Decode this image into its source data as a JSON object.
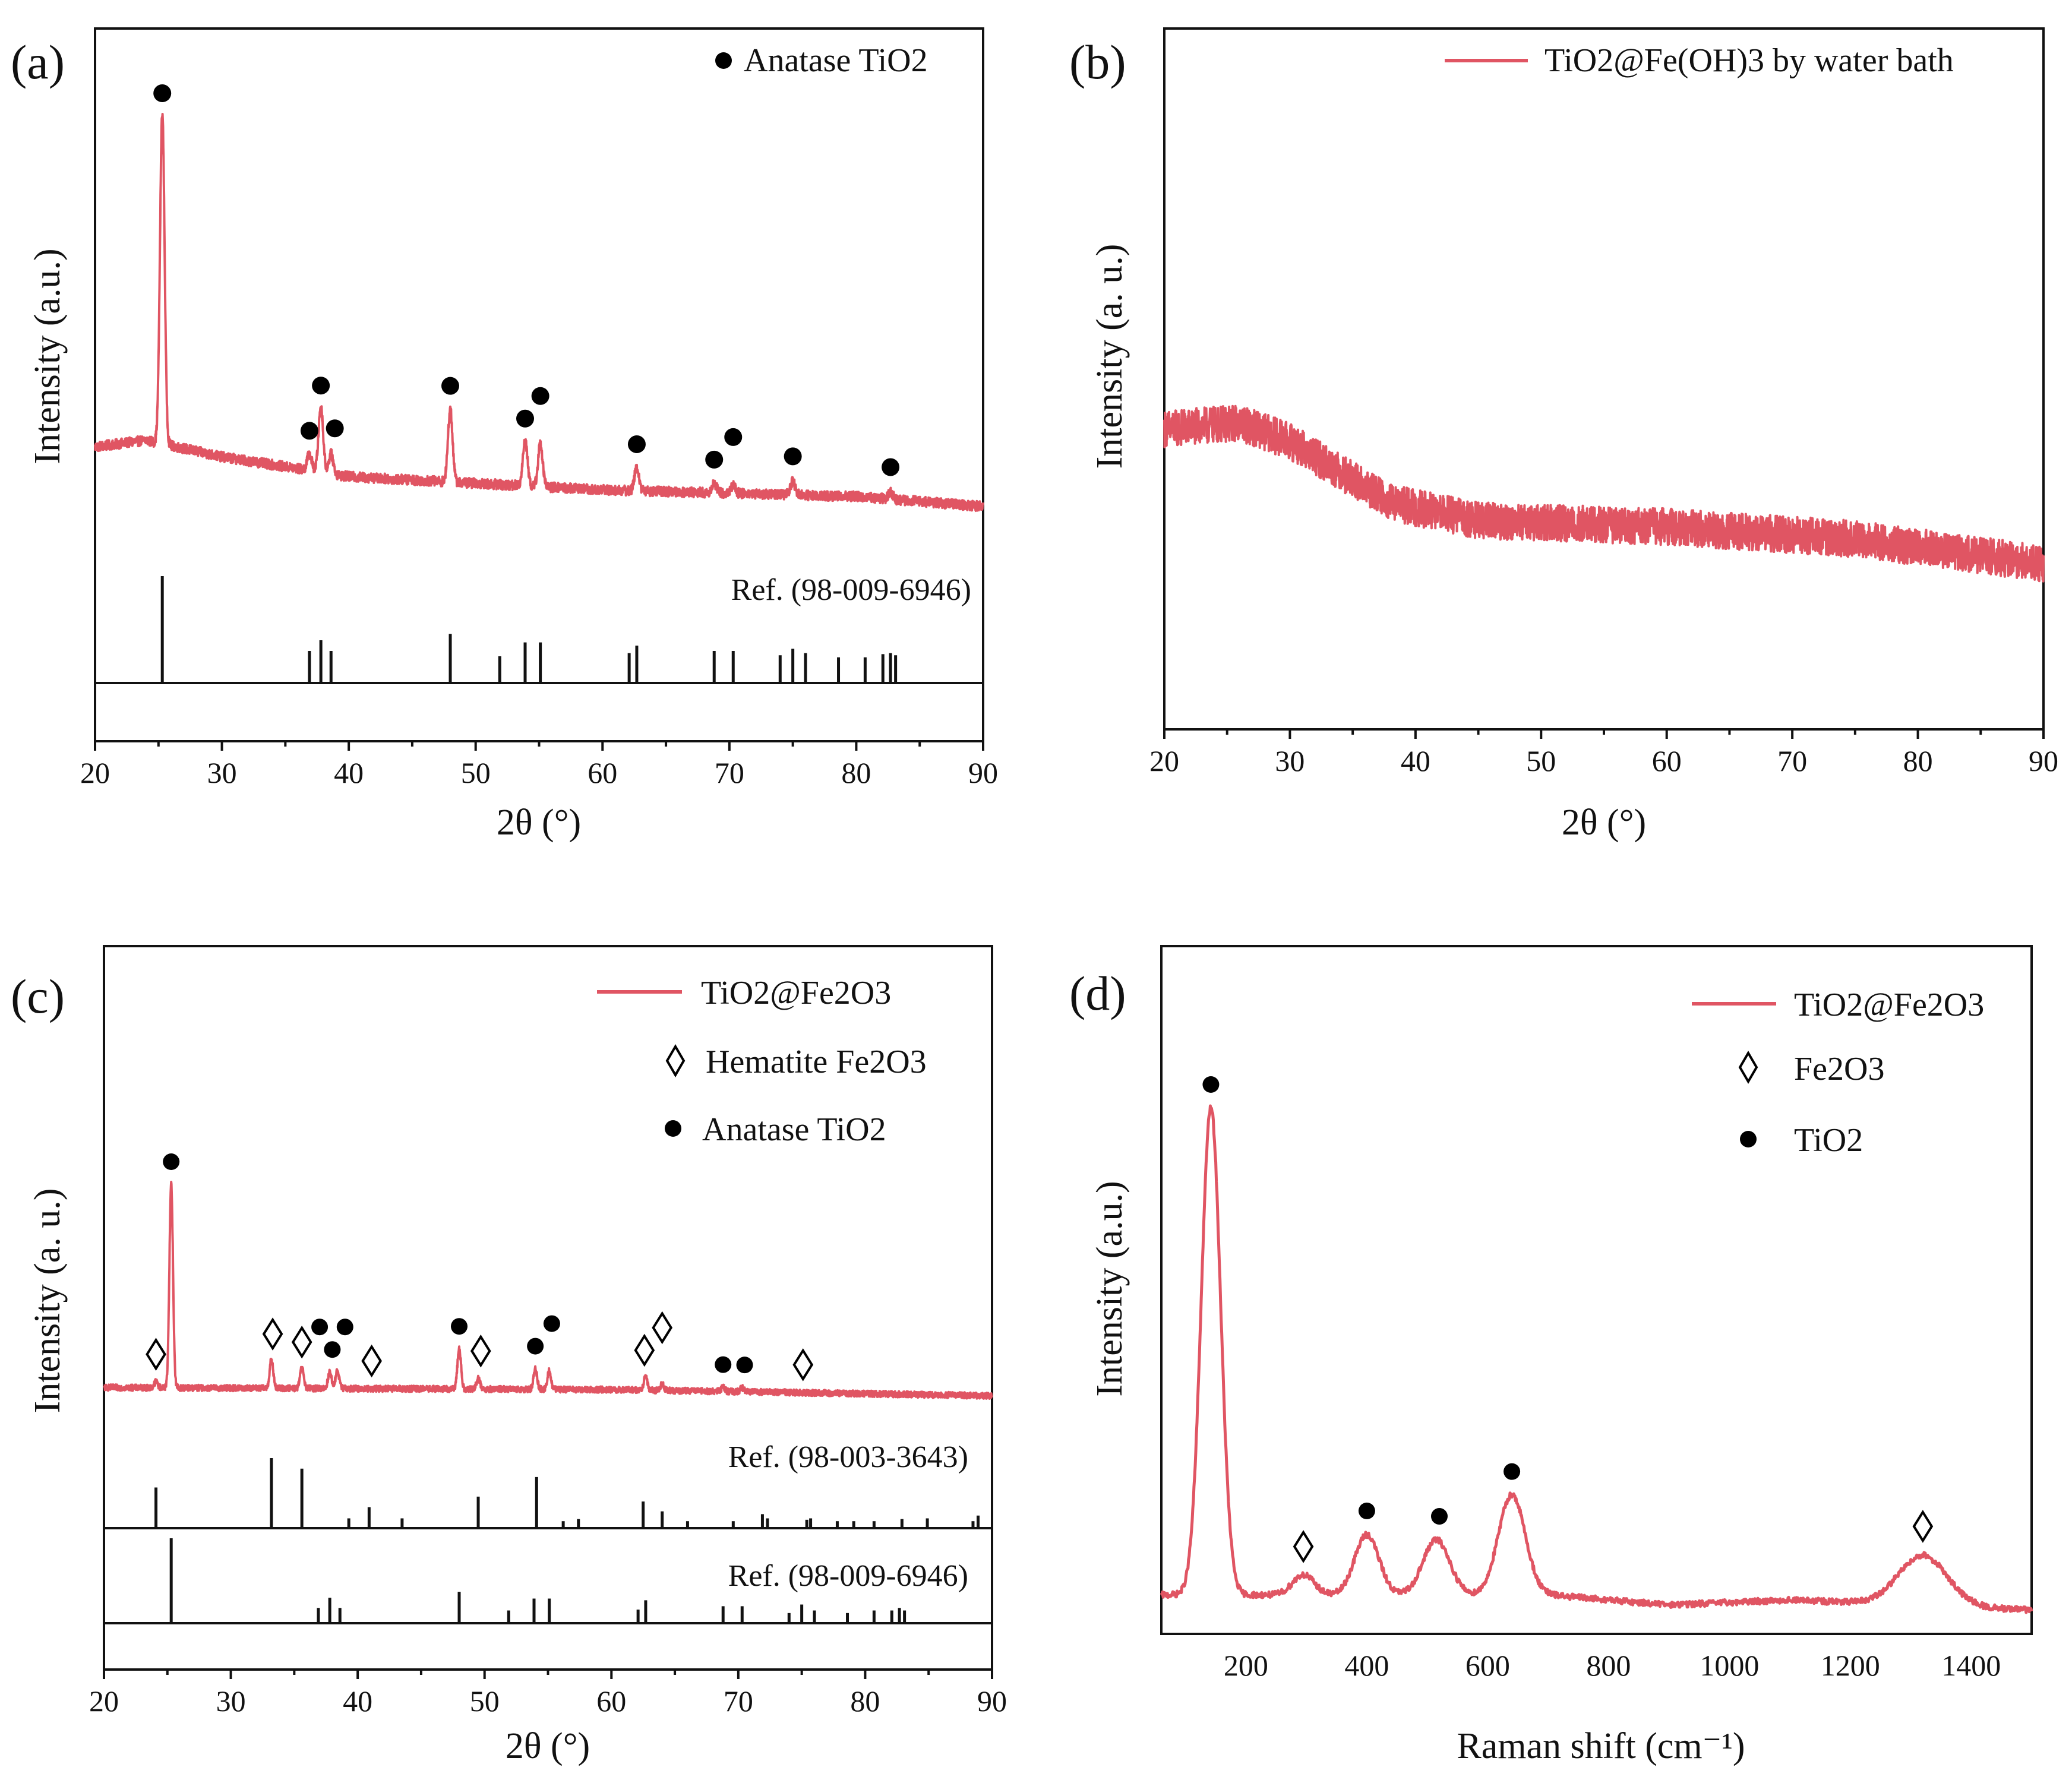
{
  "colors": {
    "trace": "#e05563",
    "axis": "#111111",
    "marker": "#000000",
    "background": "#ffffff"
  },
  "chart_data": [
    {
      "panel": "(a)",
      "type": "line",
      "xlabel": "2θ (°)",
      "ylabel": "Intensity (a.u.)",
      "xlim": [
        20,
        90
      ],
      "xticks": [
        20,
        30,
        40,
        50,
        60,
        70,
        80,
        90
      ],
      "grid": false,
      "legend_position": "top-right",
      "series": [
        {
          "name": "Anatase TiO2",
          "legend_symbol": "dot",
          "baseline": [
            [
              20,
              0.18
            ],
            [
              24,
              0.2
            ],
            [
              30,
              0.15
            ],
            [
              40,
              0.09
            ],
            [
              50,
              0.07
            ],
            [
              60,
              0.05
            ],
            [
              70,
              0.04
            ],
            [
              80,
              0.03
            ],
            [
              90,
              0.0
            ]
          ],
          "peaks": [
            [
              25.3,
              1.0
            ],
            [
              36.9,
              0.05
            ],
            [
              37.8,
              0.2
            ],
            [
              38.6,
              0.06
            ],
            [
              48.0,
              0.22
            ],
            [
              53.9,
              0.14
            ],
            [
              55.1,
              0.13
            ],
            [
              62.7,
              0.07
            ],
            [
              68.8,
              0.03
            ],
            [
              70.3,
              0.025
            ],
            [
              75.0,
              0.04
            ],
            [
              82.7,
              0.02
            ]
          ],
          "noise": 0.015
        }
      ],
      "markers": [
        {
          "symbol": "dot",
          "x": [
            25.3,
            37.8,
            36.9,
            38.9,
            48.0,
            53.9,
            55.1,
            62.7,
            68.8,
            70.3,
            75.0,
            82.7
          ]
        }
      ],
      "references": [
        {
          "label": "Ref. (98-009-6946)",
          "lines": [
            [
              25.3,
              1.0
            ],
            [
              36.9,
              0.3
            ],
            [
              37.8,
              0.4
            ],
            [
              38.6,
              0.3
            ],
            [
              48.0,
              0.46
            ],
            [
              51.9,
              0.25
            ],
            [
              53.9,
              0.38
            ],
            [
              55.1,
              0.38
            ],
            [
              62.1,
              0.28
            ],
            [
              62.7,
              0.35
            ],
            [
              68.8,
              0.3
            ],
            [
              70.3,
              0.3
            ],
            [
              74.0,
              0.26
            ],
            [
              75.0,
              0.32
            ],
            [
              76.0,
              0.28
            ],
            [
              78.6,
              0.24
            ],
            [
              80.7,
              0.24
            ],
            [
              82.1,
              0.27
            ],
            [
              82.7,
              0.28
            ],
            [
              83.1,
              0.26
            ]
          ]
        }
      ]
    },
    {
      "panel": "(b)",
      "type": "line",
      "xlabel": "2θ (°)",
      "ylabel": "Intensity (a. u.)",
      "xlim": [
        20,
        90
      ],
      "xticks": [
        20,
        30,
        40,
        50,
        60,
        70,
        80,
        90
      ],
      "grid": false,
      "legend_position": "top-right",
      "series": [
        {
          "name": "TiO2@Fe(OH)3 by water bath",
          "legend_symbol": "line",
          "baseline": [
            [
              20,
              0.62
            ],
            [
              26,
              0.63
            ],
            [
              30,
              0.6
            ],
            [
              34,
              0.55
            ],
            [
              38,
              0.5
            ],
            [
              45,
              0.47
            ],
            [
              60,
              0.46
            ],
            [
              75,
              0.44
            ],
            [
              90,
              0.4
            ]
          ],
          "peaks": [],
          "noise": 0.03
        }
      ],
      "markers": [],
      "references": []
    },
    {
      "panel": "(c)",
      "type": "line",
      "xlabel": "2θ (°)",
      "ylabel": "Intensity (a. u.)",
      "xlim": [
        20,
        90
      ],
      "xticks": [
        20,
        30,
        40,
        50,
        60,
        70,
        80,
        90
      ],
      "grid": false,
      "legend_position": "top-right",
      "series": [
        {
          "name": "TiO2@Fe2O3",
          "legend_symbol": "line",
          "baseline": [
            [
              20,
              0.04
            ],
            [
              40,
              0.035
            ],
            [
              60,
              0.03
            ],
            [
              90,
              0.0
            ]
          ],
          "peaks": [
            [
              24.1,
              0.03
            ],
            [
              25.3,
              1.0
            ],
            [
              33.2,
              0.14
            ],
            [
              35.6,
              0.1
            ],
            [
              37.8,
              0.08
            ],
            [
              38.4,
              0.09
            ],
            [
              48.0,
              0.2
            ],
            [
              49.5,
              0.05
            ],
            [
              54.0,
              0.1
            ],
            [
              55.1,
              0.09
            ],
            [
              62.7,
              0.07
            ],
            [
              64.0,
              0.03
            ],
            [
              68.8,
              0.02
            ],
            [
              70.3,
              0.02
            ]
          ],
          "noise": 0.015
        },
        {
          "name": "Hematite Fe2O3",
          "legend_symbol": "diamond"
        },
        {
          "name": "Anatase TiO2",
          "legend_symbol": "dot"
        }
      ],
      "markers": [
        {
          "symbol": "diamond",
          "x": [
            24.1,
            33.3,
            35.6,
            41.1,
            49.7,
            62.6,
            64.0,
            75.1
          ]
        },
        {
          "symbol": "dot",
          "x": [
            25.3,
            38.0,
            37.0,
            39.0,
            48.0,
            54.0,
            55.3,
            68.8,
            70.5
          ]
        }
      ],
      "references": [
        {
          "label": "Ref. (98-003-3643)",
          "lines": [
            [
              24.1,
              0.58
            ],
            [
              33.2,
              1.0
            ],
            [
              35.6,
              0.85
            ],
            [
              39.3,
              0.14
            ],
            [
              40.9,
              0.3
            ],
            [
              43.5,
              0.14
            ],
            [
              49.5,
              0.45
            ],
            [
              54.1,
              0.73
            ],
            [
              56.2,
              0.1
            ],
            [
              57.4,
              0.13
            ],
            [
              62.5,
              0.38
            ],
            [
              64.0,
              0.24
            ],
            [
              66.0,
              0.1
            ],
            [
              69.6,
              0.1
            ],
            [
              71.9,
              0.2
            ],
            [
              72.3,
              0.14
            ],
            [
              75.4,
              0.12
            ],
            [
              75.7,
              0.14
            ],
            [
              77.8,
              0.1
            ],
            [
              79.1,
              0.1
            ],
            [
              80.7,
              0.1
            ],
            [
              82.9,
              0.13
            ],
            [
              84.9,
              0.14
            ],
            [
              88.5,
              0.1
            ],
            [
              88.9,
              0.18
            ]
          ]
        },
        {
          "label": "Ref. (98-009-6946)",
          "lines": [
            [
              25.3,
              1.0
            ],
            [
              36.9,
              0.18
            ],
            [
              37.8,
              0.3
            ],
            [
              38.6,
              0.18
            ],
            [
              48.0,
              0.37
            ],
            [
              51.9,
              0.15
            ],
            [
              53.9,
              0.29
            ],
            [
              55.1,
              0.29
            ],
            [
              62.1,
              0.16
            ],
            [
              62.7,
              0.27
            ],
            [
              68.8,
              0.2
            ],
            [
              70.3,
              0.2
            ],
            [
              74.0,
              0.12
            ],
            [
              75.0,
              0.22
            ],
            [
              76.0,
              0.15
            ],
            [
              78.6,
              0.12
            ],
            [
              80.7,
              0.15
            ],
            [
              82.1,
              0.15
            ],
            [
              82.7,
              0.18
            ],
            [
              83.1,
              0.15
            ]
          ]
        }
      ]
    },
    {
      "panel": "(d)",
      "type": "line",
      "xlabel": "Raman shift (cm⁻¹)",
      "ylabel": "Intensity (a.u.)",
      "xlim": [
        60,
        1500
      ],
      "xticks": [
        200,
        400,
        600,
        800,
        1000,
        1200,
        1400
      ],
      "grid": false,
      "legend_position": "top-right",
      "series": [
        {
          "name": "TiO2@Fe2O3",
          "legend_symbol": "line",
          "baseline": [
            [
              60,
              0.03
            ],
            [
              250,
              0.03
            ],
            [
              700,
              0.03
            ],
            [
              900,
              0.01
            ],
            [
              1100,
              0.02
            ],
            [
              1500,
              0.0
            ]
          ],
          "peaks": [
            [
              142,
              0.97,
              16
            ],
            [
              295,
              0.04,
              18
            ],
            [
              400,
              0.12,
              20
            ],
            [
              515,
              0.11,
              22
            ],
            [
              640,
              0.2,
              22
            ],
            [
              1320,
              0.1,
              40
            ]
          ],
          "noise": 0.006
        },
        {
          "name": "Fe2O3",
          "legend_symbol": "diamond"
        },
        {
          "name": "TiO2",
          "legend_symbol": "dot"
        }
      ],
      "markers": [
        {
          "symbol": "dot",
          "x": [
            142,
            400,
            520,
            640
          ]
        },
        {
          "symbol": "diamond",
          "x": [
            295,
            1320
          ]
        }
      ],
      "references": []
    }
  ]
}
